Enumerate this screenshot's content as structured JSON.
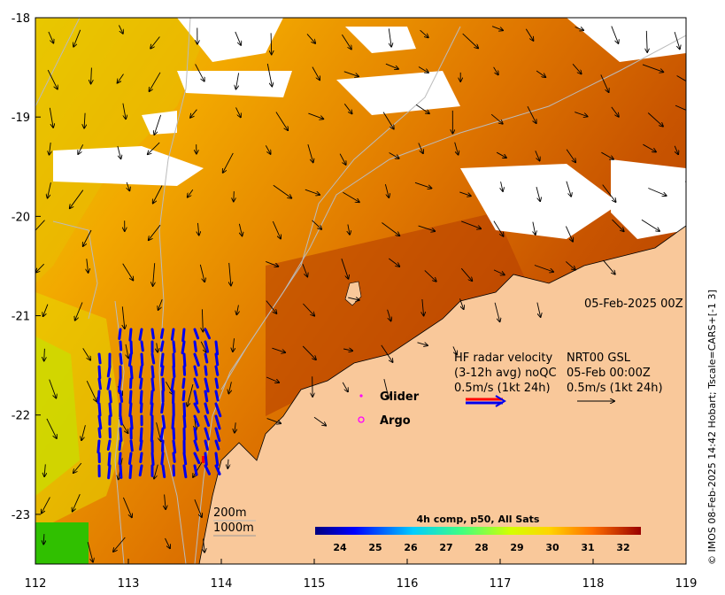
{
  "map": {
    "x_ticks": [
      "112",
      "113",
      "114",
      "115",
      "116",
      "117",
      "118",
      "119"
    ],
    "y_ticks": [
      "-18",
      "-19",
      "-20",
      "-21",
      "-22",
      "-23"
    ],
    "x_range": [
      112,
      119
    ],
    "y_range": [
      -23.5,
      -18
    ]
  },
  "timestamp": "05-Feb-2025 00Z",
  "hf_radar": {
    "line1": "HF radar velocity",
    "line2": "(3-12h avg) noQC",
    "line3": "0.5m/s (1kt 24h)"
  },
  "nrt": {
    "line1": "NRT00 GSL",
    "line2": "05-Feb 00:00Z",
    "line3": "0.5m/s (1kt 24h)"
  },
  "legend": {
    "glider": "Glider",
    "argo": "Argo"
  },
  "depth": {
    "line1": "200m",
    "line2": "1000m"
  },
  "colorbar": {
    "title": "4h comp, p50, All Sats",
    "ticks": [
      "24",
      "25",
      "26",
      "27",
      "28",
      "29",
      "30",
      "31",
      "32"
    ],
    "range": [
      23.3,
      32.5
    ]
  },
  "credit": "© IMOS 08-Feb-2025 14:42 Hobart; Tscale=CARS+[-1 3]",
  "colors": {
    "land": "#f9c89a",
    "radar_arrow": "#0000ee",
    "glider": "#ff00ff",
    "argo": "#ff00ff",
    "contour": "#bbbbbb"
  }
}
